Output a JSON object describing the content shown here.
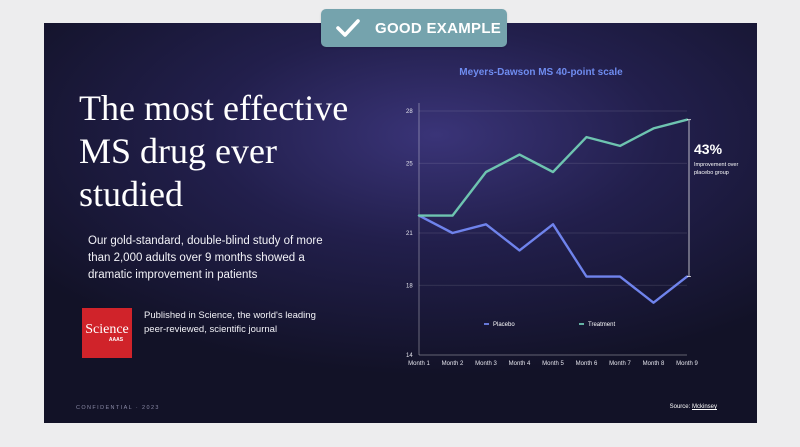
{
  "badge": {
    "label": "GOOD EXAMPLE",
    "icon": "check-icon"
  },
  "slide": {
    "headline": "The most effective MS drug ever studied",
    "description": "Our gold-standard, double-blind study of more than 2,000 adults over 9 months showed a dramatic improvement in patients",
    "publication_logo": {
      "word": "Science",
      "sub": "AAAS",
      "color": "#d0232a"
    },
    "publication_text": "Published in Science, the world's leading peer-reviewed, scientific journal",
    "footer_left": "CONFIDENTIAL · 2023",
    "source_prefix": "Source: ",
    "source_name": "Mckinsey"
  },
  "chart_data": {
    "type": "line",
    "title": "Meyers-Dawson MS 40-point scale",
    "categories": [
      "Month 1",
      "Month 2",
      "Month 3",
      "Month 4",
      "Month 5",
      "Month 6",
      "Month 7",
      "Month 8",
      "Month 9"
    ],
    "ylim": [
      14,
      28
    ],
    "yticks": [
      14,
      18,
      21,
      25,
      28
    ],
    "grid": true,
    "legend_position": "bottom-left",
    "series": [
      {
        "name": "Placebo",
        "color": "#6f83ec",
        "values": [
          22,
          21,
          21.5,
          20,
          21.5,
          18.5,
          18.5,
          17,
          18.5
        ]
      },
      {
        "name": "Treatment",
        "color": "#6ec4b0",
        "values": [
          22,
          22,
          24.5,
          25.5,
          24.5,
          26.5,
          26,
          27,
          27.5
        ]
      }
    ],
    "annotation": {
      "value": "43%",
      "text": "Improvement over placebo group"
    }
  }
}
